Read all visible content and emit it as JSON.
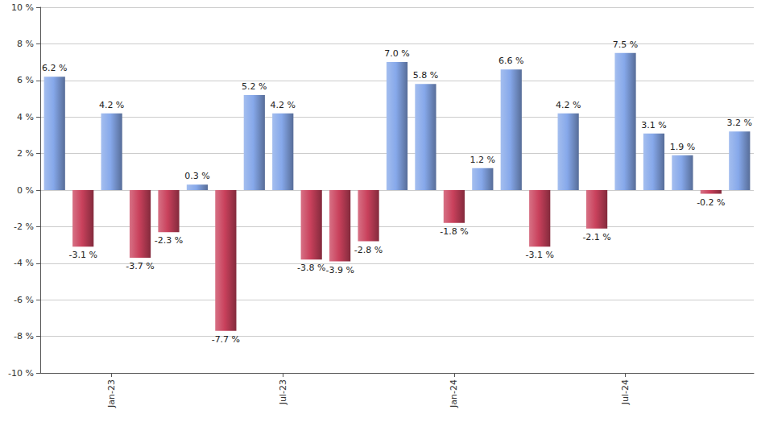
{
  "chart_data": {
    "type": "bar",
    "categories": [
      null,
      null,
      "Jan-23",
      null,
      null,
      null,
      null,
      null,
      "Jul-23",
      null,
      null,
      null,
      null,
      null,
      "Jan-24",
      null,
      null,
      null,
      null,
      null,
      "Jul-24",
      null,
      null,
      null,
      null
    ],
    "values": [
      6.2,
      -3.1,
      4.2,
      -3.7,
      -2.3,
      0.3,
      -7.7,
      5.2,
      4.2,
      -3.8,
      -3.9,
      -2.8,
      7.0,
      5.8,
      -1.8,
      1.2,
      6.6,
      -3.1,
      4.2,
      -2.1,
      7.5,
      3.1,
      1.9,
      -0.2,
      3.2
    ],
    "value_labels": [
      "6.2 %",
      "-3.1 %",
      "4.2 %",
      "-3.7 %",
      "-2.3 %",
      "0.3 %",
      "-7.7 %",
      "5.2 %",
      "4.2 %",
      "-3.8 %",
      "-3.9 %",
      "-2.8 %",
      "7.0 %",
      "5.8 %",
      "-1.8 %",
      "1.2 %",
      "6.6 %",
      "-3.1 %",
      "4.2 %",
      "-2.1 %",
      "7.5 %",
      "3.1 %",
      "1.9 %",
      "-0.2 %",
      "3.2 %"
    ],
    "colors": [
      "#86a8ea",
      "#c9415c",
      "#86a8ea",
      "#c9415c",
      "#c9415c",
      "#86a8ea",
      "#c9415c",
      "#86a8ea",
      "#86a8ea",
      "#c9415c",
      "#c9415c",
      "#c9415c",
      "#86a8ea",
      "#86a8ea",
      "#c9415c",
      "#86a8ea",
      "#86a8ea",
      "#c9415c",
      "#86a8ea",
      "#c9415c",
      "#86a8ea",
      "#86a8ea",
      "#86a8ea",
      "#c9415c",
      "#86a8ea"
    ],
    "ylim": [
      -10,
      10
    ],
    "yticks": [
      {
        "value": -10,
        "label": "-10 %"
      },
      {
        "value": -8,
        "label": "-8 %"
      },
      {
        "value": -6,
        "label": "-6 %"
      },
      {
        "value": -4,
        "label": "-4 %"
      },
      {
        "value": -2,
        "label": "-2 %"
      },
      {
        "value": 0,
        "label": "0 %"
      },
      {
        "value": 2,
        "label": "2 %"
      },
      {
        "value": 4,
        "label": "4 %"
      },
      {
        "value": 6,
        "label": "6 %"
      },
      {
        "value": 8,
        "label": "8 %"
      },
      {
        "value": 10,
        "label": "10 %"
      }
    ],
    "grid": true,
    "data_labels": true
  }
}
